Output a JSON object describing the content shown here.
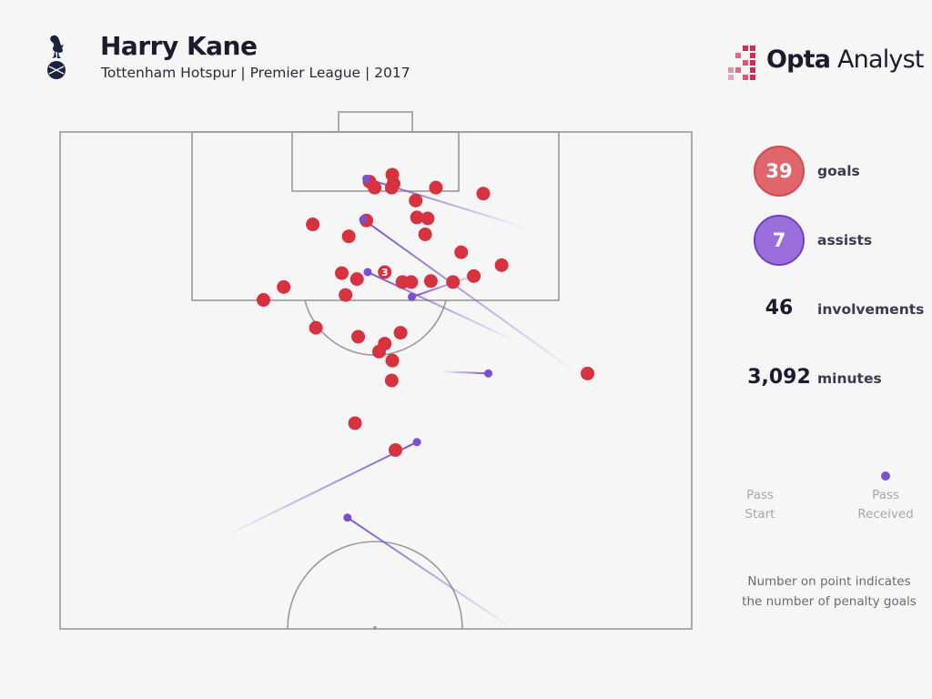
{
  "header": {
    "title": "Harry Kane",
    "subtitle": "Tottenham Hotspur | Premier League | 2017",
    "brand": {
      "logo_bold": "Opta",
      "logo_rest": " Analyst"
    },
    "crest_icon": "cockerel-crest-icon"
  },
  "stats": {
    "goals": {
      "value": "39",
      "label": "goals",
      "color": "#e0666c",
      "ring": "#cf4a52"
    },
    "assists": {
      "value": "7",
      "label": "assists",
      "color": "#9a6fdb",
      "ring": "#6f3fc4"
    },
    "involvements": {
      "value": "46",
      "label": "involvements"
    },
    "minutes": {
      "value": "3,092",
      "label": "minutes"
    }
  },
  "legend": {
    "pass_start": "Pass\nStart",
    "pass_received": "Pass\nReceived",
    "note": "Number on point indicates\nthe number of penalty goals"
  },
  "colors": {
    "goal": "#d6323f",
    "assist": "#7a4fd0",
    "pitch_line": "#9a9a9a",
    "background": "#f6f6f6"
  },
  "chart_data": {
    "type": "scatter",
    "title": "Harry Kane",
    "xlim": [
      0,
      100
    ],
    "ylim": [
      50,
      100
    ],
    "goals": [
      {
        "x": 52.6,
        "y": 95.7
      },
      {
        "x": 52.8,
        "y": 94.8
      },
      {
        "x": 49.0,
        "y": 95.0
      },
      {
        "x": 49.8,
        "y": 94.4
      },
      {
        "x": 52.5,
        "y": 94.4
      },
      {
        "x": 56.3,
        "y": 93.1
      },
      {
        "x": 59.5,
        "y": 94.4
      },
      {
        "x": 67.0,
        "y": 93.8
      },
      {
        "x": 56.5,
        "y": 91.4
      },
      {
        "x": 58.2,
        "y": 91.3
      },
      {
        "x": 48.5,
        "y": 91.1
      },
      {
        "x": 40.0,
        "y": 90.7
      },
      {
        "x": 45.7,
        "y": 89.5
      },
      {
        "x": 57.8,
        "y": 89.7
      },
      {
        "x": 63.5,
        "y": 87.9
      },
      {
        "x": 69.9,
        "y": 86.6
      },
      {
        "x": 44.6,
        "y": 85.8
      },
      {
        "x": 47.0,
        "y": 85.2
      },
      {
        "x": 54.2,
        "y": 84.9
      },
      {
        "x": 55.6,
        "y": 84.9
      },
      {
        "x": 58.7,
        "y": 85.0
      },
      {
        "x": 62.2,
        "y": 84.9
      },
      {
        "x": 65.5,
        "y": 85.5
      },
      {
        "x": 35.4,
        "y": 84.4
      },
      {
        "x": 32.2,
        "y": 83.1
      },
      {
        "x": 45.2,
        "y": 83.6
      },
      {
        "x": 40.5,
        "y": 80.3
      },
      {
        "x": 47.2,
        "y": 79.4
      },
      {
        "x": 51.4,
        "y": 78.7
      },
      {
        "x": 53.9,
        "y": 79.8
      },
      {
        "x": 50.5,
        "y": 77.9
      },
      {
        "x": 52.6,
        "y": 77.0
      },
      {
        "x": 83.5,
        "y": 75.7
      },
      {
        "x": 52.5,
        "y": 75.0
      },
      {
        "x": 46.7,
        "y": 70.7
      },
      {
        "x": 53.1,
        "y": 68.0
      },
      {
        "x": 51.4,
        "y": 85.9,
        "penalties": 3
      }
    ],
    "assists": [
      {
        "start_x": 73.6,
        "start_y": 90.4,
        "end_x": 48.5,
        "end_y": 95.3
      },
      {
        "start_x": 81.5,
        "start_y": 75.9,
        "end_x": 48.0,
        "end_y": 91.2
      },
      {
        "start_x": 72.3,
        "start_y": 78.9,
        "end_x": 48.7,
        "end_y": 85.9
      },
      {
        "start_x": 67.6,
        "start_y": 86.0,
        "end_x": 55.7,
        "end_y": 83.4
      },
      {
        "start_x": 60.3,
        "start_y": 75.9,
        "end_x": 67.8,
        "end_y": 75.7
      },
      {
        "start_x": 26.0,
        "start_y": 59.3,
        "end_x": 56.5,
        "end_y": 68.8
      },
      {
        "start_x": 71.7,
        "start_y": 50.0,
        "end_x": 45.5,
        "end_y": 61.2
      }
    ]
  }
}
